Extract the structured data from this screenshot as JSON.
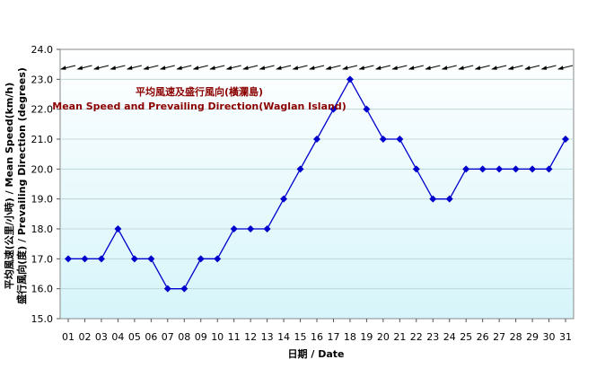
{
  "chart_data": {
    "type": "line",
    "title": "平均風速及盛行風向(橫瀾島)",
    "subtitle": "Mean Speed and Prevailing Direction(Waglan Island)",
    "xlabel": "日期 / Date",
    "ylabel_line1": "平均風速(公里/小時) / Mean Speed(km/h)",
    "ylabel_line2": "盛行風向(度) / Prevailing Direction (degrees)",
    "ylim": [
      15.0,
      24.0
    ],
    "ytick_labels": [
      "15.0",
      "16.0",
      "17.0",
      "18.0",
      "19.0",
      "20.0",
      "21.0",
      "22.0",
      "23.0",
      "24.0"
    ],
    "categories": [
      "01",
      "02",
      "03",
      "04",
      "05",
      "06",
      "07",
      "08",
      "09",
      "10",
      "11",
      "12",
      "13",
      "14",
      "15",
      "16",
      "17",
      "18",
      "19",
      "20",
      "21",
      "22",
      "23",
      "24",
      "25",
      "26",
      "27",
      "28",
      "29",
      "30",
      "31"
    ],
    "series": [
      {
        "values": [
          17,
          17,
          17,
          18,
          17,
          17,
          16,
          16,
          17,
          17,
          18,
          18,
          18,
          19,
          20,
          21,
          22,
          23,
          22,
          21,
          21,
          20,
          19,
          19,
          20,
          20,
          20,
          20,
          20,
          20,
          21
        ],
        "color": "#0000cc",
        "marker": "diamond"
      }
    ],
    "direction_arrows": {
      "count": 31,
      "direction": "east-northeast",
      "color": "#000000"
    },
    "plot_background": "#dff7fb",
    "grid": true
  }
}
